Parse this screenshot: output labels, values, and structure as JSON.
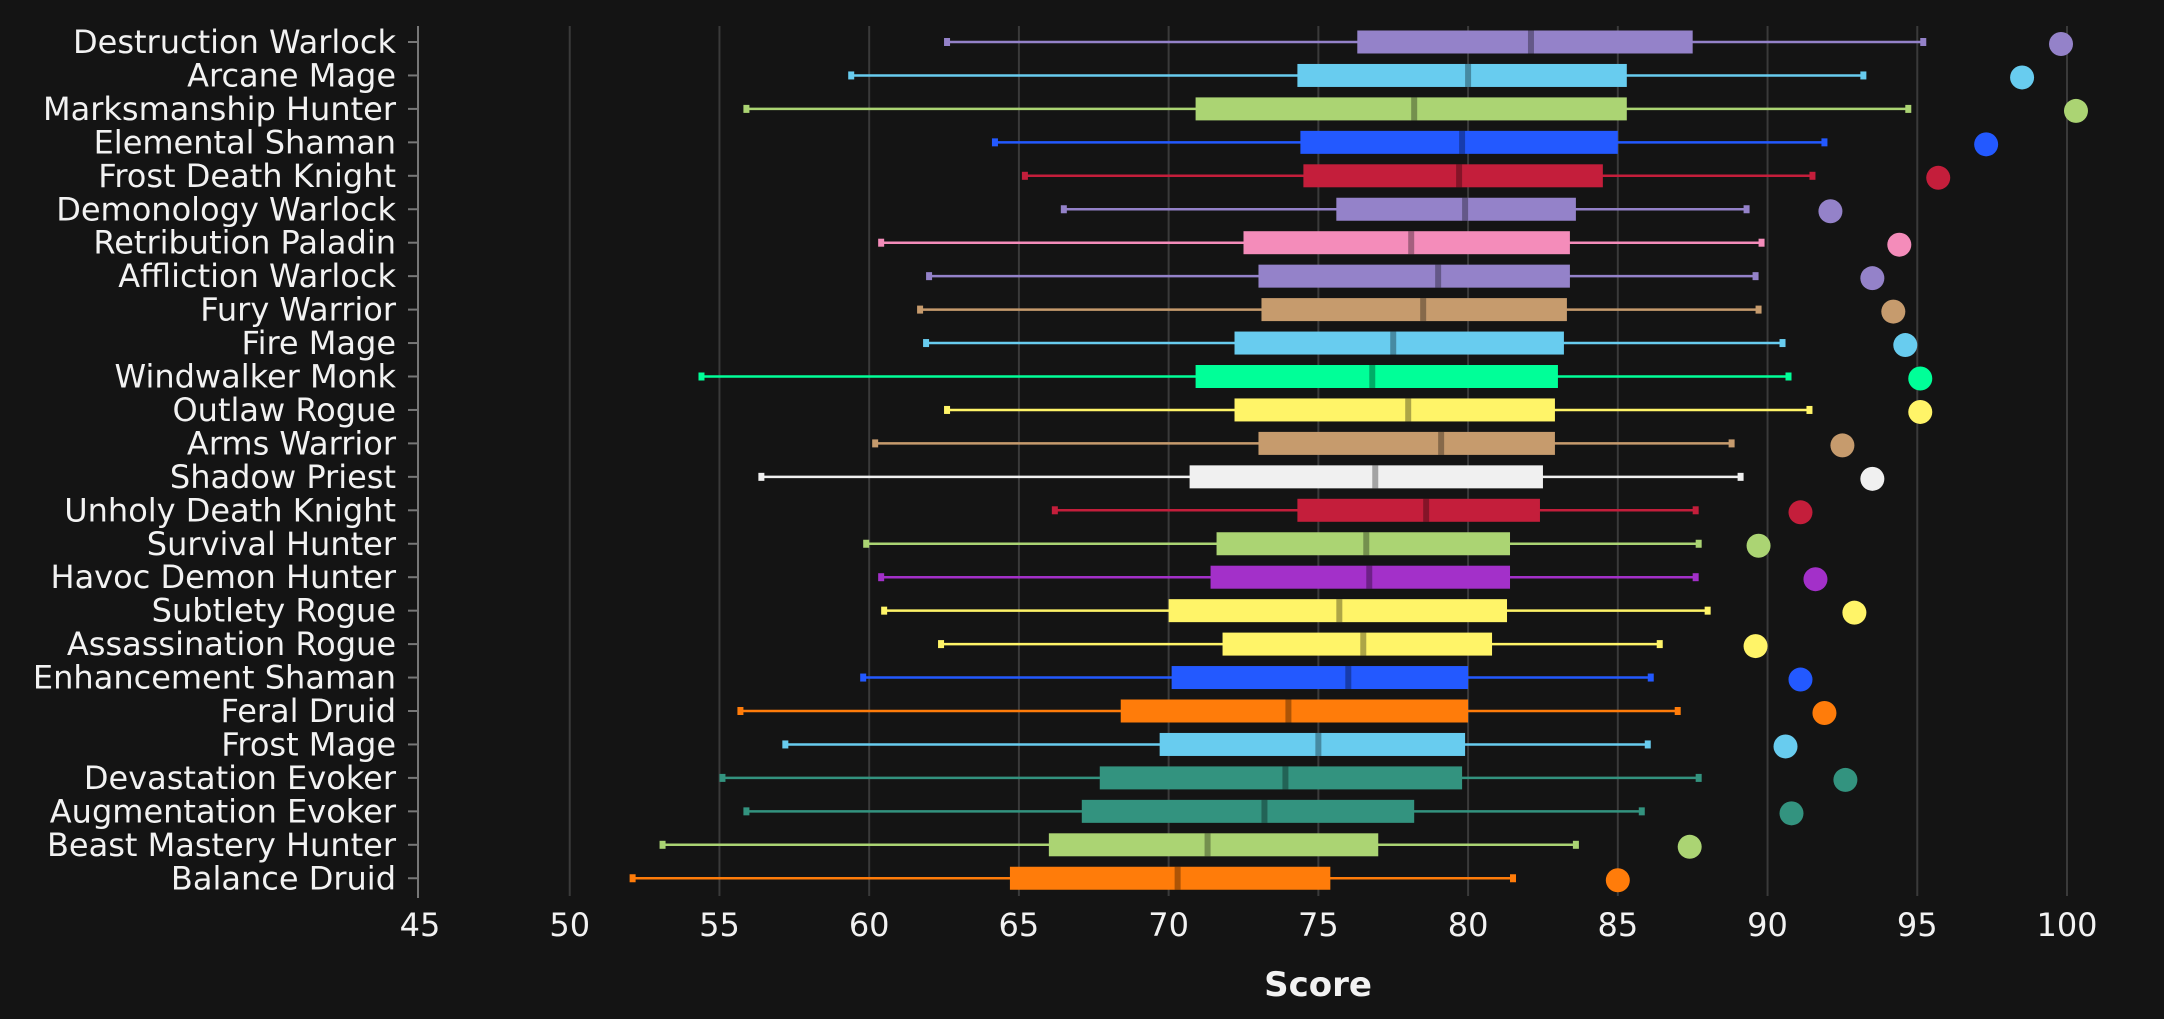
{
  "chart_data": {
    "type": "box",
    "title": "",
    "xlabel": "Score",
    "ylabel": "",
    "xlim": [
      45,
      101
    ],
    "xticks": [
      45,
      50,
      55,
      60,
      65,
      70,
      75,
      80,
      85,
      90,
      95,
      100
    ],
    "grid": "vertical",
    "legend": "none",
    "background": "#141414",
    "series": [
      {
        "name": "Destruction Warlock",
        "color": "#9482c9",
        "min": 62.6,
        "q1": 76.3,
        "median": 82.1,
        "q3": 87.5,
        "max": 95.2,
        "best": 99.8
      },
      {
        "name": "Arcane Mage",
        "color": "#68ccef",
        "min": 59.4,
        "q1": 74.3,
        "median": 80.0,
        "q3": 85.3,
        "max": 93.2,
        "best": 98.5
      },
      {
        "name": "Marksmanship Hunter",
        "color": "#abd473",
        "min": 55.9,
        "q1": 70.9,
        "median": 78.2,
        "q3": 85.3,
        "max": 94.7,
        "best": 100.3
      },
      {
        "name": "Elemental Shaman",
        "color": "#2359ff",
        "min": 64.2,
        "q1": 74.4,
        "median": 79.8,
        "q3": 85.0,
        "max": 91.9,
        "best": 97.3
      },
      {
        "name": "Frost Death Knight",
        "color": "#c41e3b",
        "min": 65.2,
        "q1": 74.5,
        "median": 79.7,
        "q3": 84.5,
        "max": 91.5,
        "best": 95.7
      },
      {
        "name": "Demonology Warlock",
        "color": "#9482c9",
        "min": 66.5,
        "q1": 75.6,
        "median": 79.9,
        "q3": 83.6,
        "max": 89.3,
        "best": 92.1
      },
      {
        "name": "Retribution Paladin",
        "color": "#f48cba",
        "min": 60.4,
        "q1": 72.5,
        "median": 78.1,
        "q3": 83.4,
        "max": 89.8,
        "best": 94.4
      },
      {
        "name": "Affliction Warlock",
        "color": "#9482c9",
        "min": 62.0,
        "q1": 73.0,
        "median": 79.0,
        "q3": 83.4,
        "max": 89.6,
        "best": 93.5
      },
      {
        "name": "Fury Warrior",
        "color": "#c69b6d",
        "min": 61.7,
        "q1": 73.1,
        "median": 78.5,
        "q3": 83.3,
        "max": 89.7,
        "best": 94.2
      },
      {
        "name": "Fire Mage",
        "color": "#68ccef",
        "min": 61.9,
        "q1": 72.2,
        "median": 77.5,
        "q3": 83.2,
        "max": 90.5,
        "best": 94.6
      },
      {
        "name": "Windwalker Monk",
        "color": "#00ff98",
        "min": 54.4,
        "q1": 70.9,
        "median": 76.8,
        "q3": 83.0,
        "max": 90.7,
        "best": 95.1
      },
      {
        "name": "Outlaw Rogue",
        "color": "#fff468",
        "min": 62.6,
        "q1": 72.2,
        "median": 78.0,
        "q3": 82.9,
        "max": 91.4,
        "best": 95.1
      },
      {
        "name": "Arms Warrior",
        "color": "#c69b6d",
        "min": 60.2,
        "q1": 73.0,
        "median": 79.1,
        "q3": 82.9,
        "max": 88.8,
        "best": 92.5
      },
      {
        "name": "Shadow Priest",
        "color": "#f0f0f0",
        "min": 56.4,
        "q1": 70.7,
        "median": 76.9,
        "q3": 82.5,
        "max": 89.1,
        "best": 93.5
      },
      {
        "name": "Unholy Death Knight",
        "color": "#c41e3b",
        "min": 66.2,
        "q1": 74.3,
        "median": 78.6,
        "q3": 82.4,
        "max": 87.6,
        "best": 91.1
      },
      {
        "name": "Survival Hunter",
        "color": "#abd473",
        "min": 59.9,
        "q1": 71.6,
        "median": 76.6,
        "q3": 81.4,
        "max": 87.7,
        "best": 89.7
      },
      {
        "name": "Havoc Demon Hunter",
        "color": "#a330c9",
        "min": 60.4,
        "q1": 71.4,
        "median": 76.7,
        "q3": 81.4,
        "max": 87.6,
        "best": 91.6
      },
      {
        "name": "Subtlety Rogue",
        "color": "#fff468",
        "min": 60.5,
        "q1": 70.0,
        "median": 75.7,
        "q3": 81.3,
        "max": 88.0,
        "best": 92.9
      },
      {
        "name": "Assassination Rogue",
        "color": "#fff468",
        "min": 62.4,
        "q1": 71.8,
        "median": 76.5,
        "q3": 80.8,
        "max": 86.4,
        "best": 89.6
      },
      {
        "name": "Enhancement Shaman",
        "color": "#2359ff",
        "min": 59.8,
        "q1": 70.1,
        "median": 76.0,
        "q3": 80.0,
        "max": 86.1,
        "best": 91.1
      },
      {
        "name": "Feral Druid",
        "color": "#ff7c0a",
        "min": 55.7,
        "q1": 68.4,
        "median": 74.0,
        "q3": 80.0,
        "max": 87.0,
        "best": 91.9
      },
      {
        "name": "Frost Mage",
        "color": "#68ccef",
        "min": 57.2,
        "q1": 69.7,
        "median": 75.0,
        "q3": 79.9,
        "max": 86.0,
        "best": 90.6
      },
      {
        "name": "Devastation Evoker",
        "color": "#33937f",
        "min": 55.1,
        "q1": 67.7,
        "median": 73.9,
        "q3": 79.8,
        "max": 87.7,
        "best": 92.6
      },
      {
        "name": "Augmentation Evoker",
        "color": "#33937f",
        "min": 55.9,
        "q1": 67.1,
        "median": 73.2,
        "q3": 78.2,
        "max": 85.8,
        "best": 90.8
      },
      {
        "name": "Beast Mastery Hunter",
        "color": "#abd473",
        "min": 53.1,
        "q1": 66.0,
        "median": 71.3,
        "q3": 77.0,
        "max": 83.6,
        "best": 87.4
      },
      {
        "name": "Balance Druid",
        "color": "#ff7c0a",
        "min": 52.1,
        "q1": 64.7,
        "median": 70.3,
        "q3": 75.4,
        "max": 81.5,
        "best": 85.0
      }
    ]
  }
}
